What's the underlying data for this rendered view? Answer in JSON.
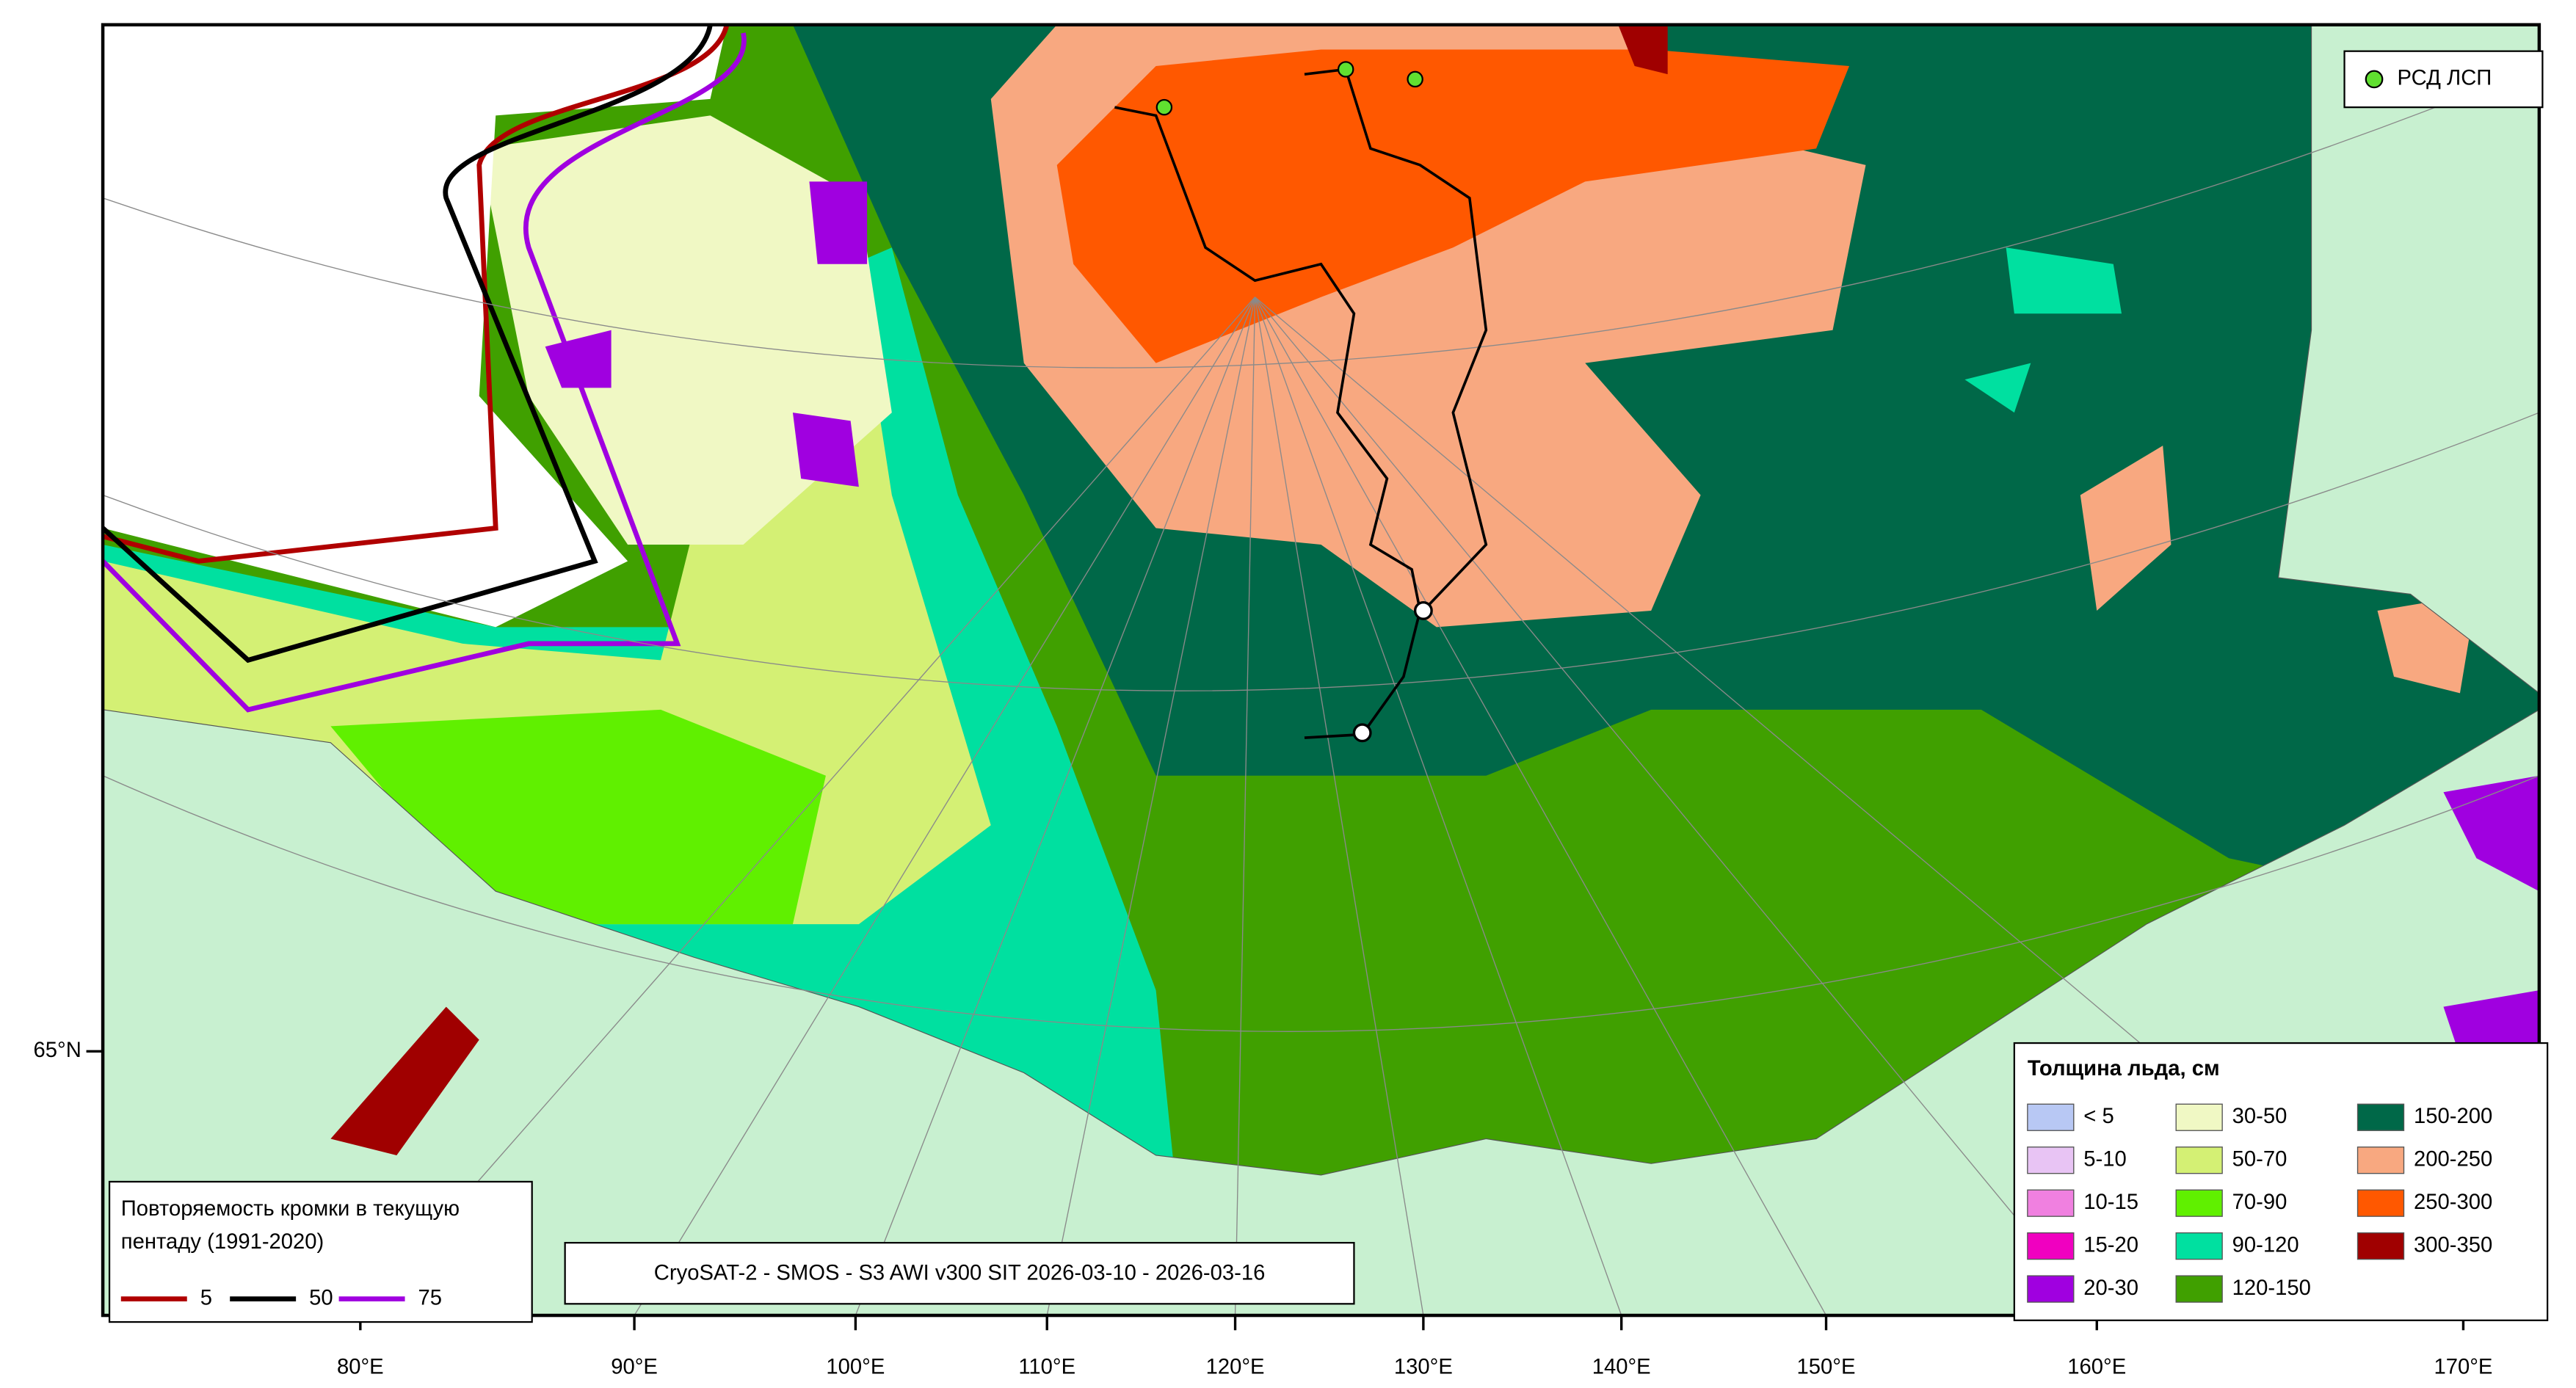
{
  "ice_legend": {
    "title": "Толщина льда, см",
    "items": [
      {
        "label": "< 5",
        "color": "#b8c8f4"
      },
      {
        "label": "5-10",
        "color": "#e8c4f4"
      },
      {
        "label": "10-15",
        "color": "#f080e0"
      },
      {
        "label": "15-20",
        "color": "#f000c0"
      },
      {
        "label": "20-30",
        "color": "#a000e0"
      },
      {
        "label": "30-50",
        "color": "#f0f8c4"
      },
      {
        "label": "50-70",
        "color": "#d4f074"
      },
      {
        "label": "70-90",
        "color": "#60f000"
      },
      {
        "label": "90-120",
        "color": "#00e0a0"
      },
      {
        "label": "120-150",
        "color": "#40a000"
      },
      {
        "label": "150-200",
        "color": "#006848"
      },
      {
        "label": "200-250",
        "color": "#f8a880"
      },
      {
        "label": "250-300",
        "color": "#ff5800"
      },
      {
        "label": "300-350",
        "color": "#a00000"
      }
    ]
  },
  "edge_legend": {
    "title_lines": [
      "Повторяемость кромки в текущую",
      "пентаду (1991-2020)"
    ],
    "items": [
      {
        "label": "5",
        "color": "#b00000"
      },
      {
        "label": "50",
        "color": "#000000"
      },
      {
        "label": "75",
        "color": "#a000e0"
      }
    ]
  },
  "source": "CryoSAT-2 - SMOS - S3 AWI v300 SIT 2026-03-10 - 2026-03-16",
  "marker_legend": {
    "label": "РСД ЛСП",
    "color": "#60e030"
  },
  "lat_labels": [
    "65°N"
  ],
  "lon_labels": [
    "80°E",
    "90°E",
    "100°E",
    "110°E",
    "120°E",
    "130°E",
    "140°E",
    "150°E",
    "160°E",
    "170°E"
  ]
}
